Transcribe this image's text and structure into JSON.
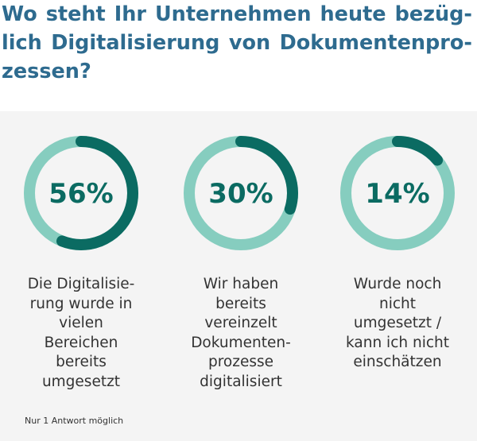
{
  "title": "Wo steht Ihr Unternehmen heute bezüg­lich Digitalisierung von Dokumentenpro­zessen?",
  "footnote": "Nur 1 Antwort möglich",
  "colors": {
    "title": "#2e6b8f",
    "ring_value": "#0b6b62",
    "ring_rest": "#86cdbf",
    "panel": "#f4f4f4"
  },
  "chart_data": {
    "type": "pie",
    "title": "Wo steht Ihr Unternehmen heute bezüglich Digitalisierung von Dokumentenprozessen?",
    "categories": [
      "Die Digitalisierung wurde in vielen Bereichen bereits umgesetzt",
      "Wir haben bereits vereinzelt Dokumentenprozesse digitalisiert",
      "Wurde noch nicht umgesetzt / kann ich nicht einschätzen"
    ],
    "values": [
      56,
      30,
      14
    ],
    "value_labels": [
      "56%",
      "30%",
      "14%"
    ],
    "display_labels": [
      "Die Digitalisie-\nrung wurde in\nvielen\nBereichen\nbereits\numgesetzt",
      "Wir haben\nbereits\nvereinzelt\nDokumenten-\nprozesse\ndigitalisiert",
      "Wurde noch\nnicht\numgesetzt /\nkann ich nicht\neinschätzen"
    ],
    "unit": "%"
  }
}
